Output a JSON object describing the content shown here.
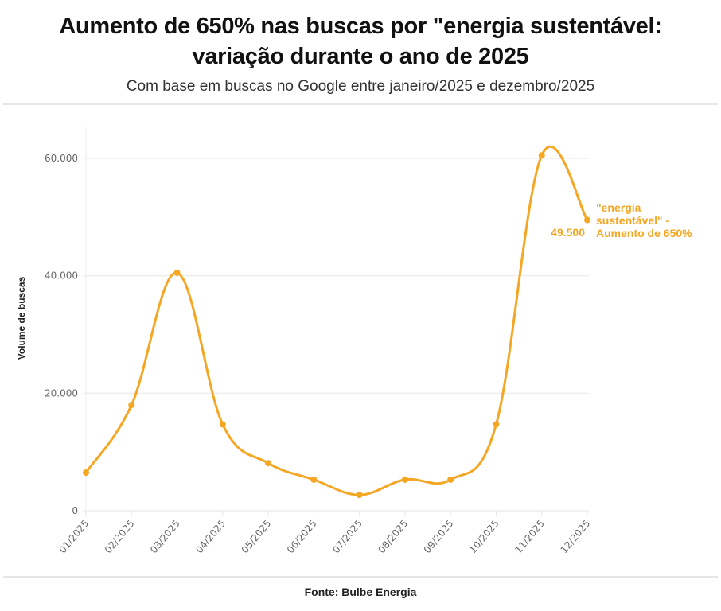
{
  "header": {
    "title_line1": "Aumento de 650% nas buscas por \"energia sustentável:",
    "title_line2": "variação durante o ano de 2025",
    "subtitle": "Com base em buscas no Google entre janeiro/2025 e dezembro/2025"
  },
  "footer": {
    "source": "Fonte: Bulbe Energia"
  },
  "colors": {
    "line": "#f5a623",
    "grid": "#eeeeee",
    "text": "#111111"
  },
  "annotation": {
    "value_label": "49.500",
    "series_label_lines": [
      "\"energia",
      "sustentável\" -",
      "Aumento de 650%"
    ]
  },
  "axis": {
    "ylabel": "Volume de buscas",
    "yticks": [
      "0",
      "20.000",
      "40.000",
      "60.000"
    ]
  },
  "chart_data": {
    "type": "line",
    "title": "Aumento de 650% nas buscas por \"energia sustentável: variação durante o ano de 2025",
    "subtitle": "Com base em buscas no Google entre janeiro/2025 e dezembro/2025",
    "xlabel": "",
    "ylabel": "Volume de buscas",
    "ylim": [
      0,
      60000
    ],
    "yticks": [
      0,
      20000,
      40000,
      60000
    ],
    "grid": true,
    "categories": [
      "01/2025",
      "02/2025",
      "03/2025",
      "04/2025",
      "05/2025",
      "06/2025",
      "07/2025",
      "08/2025",
      "09/2025",
      "10/2025",
      "11/2025",
      "12/2025"
    ],
    "series": [
      {
        "name": "\"energia sustentável\" - Aumento de 650%",
        "color": "#f5a623",
        "values": [
          6500,
          18000,
          40500,
          14700,
          8100,
          5300,
          2700,
          5300,
          5300,
          14700,
          60500,
          49500
        ]
      }
    ],
    "annotations": [
      {
        "x": "12/2025",
        "label": "49.500"
      }
    ],
    "legend_position": "inline-right",
    "source": "Fonte: Bulbe Energia"
  }
}
